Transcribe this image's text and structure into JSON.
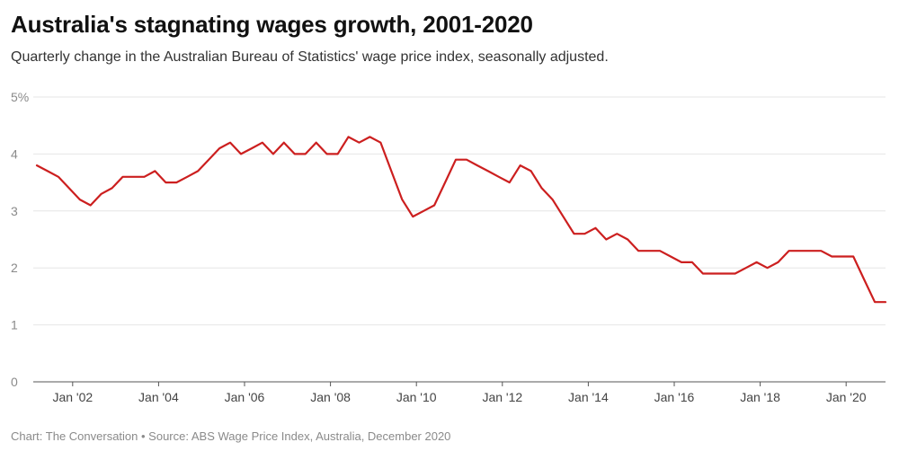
{
  "title": "Australia's stagnating wages growth, 2001-2020",
  "subtitle": "Quarterly change in the Australian Bureau of Statistics' wage price index, seasonally adjusted.",
  "footer": "Chart: The Conversation • Source: ABS Wage Price Index, Australia, December 2020",
  "colors": {
    "line": "#cc1f1f",
    "grid": "#e6e6e6",
    "axis": "#555555"
  },
  "chart_data": {
    "type": "line",
    "title": "Australia's stagnating wages growth, 2001-2020",
    "ylim": [
      0,
      5
    ],
    "y_ticks": [
      {
        "value": 0,
        "label": "0"
      },
      {
        "value": 1,
        "label": "1"
      },
      {
        "value": 2,
        "label": "2"
      },
      {
        "value": 3,
        "label": "3"
      },
      {
        "value": 4,
        "label": "4"
      },
      {
        "value": 5,
        "label": "5%"
      }
    ],
    "x_ticks": [
      {
        "date": "2002-01",
        "label": "Jan '02"
      },
      {
        "date": "2004-01",
        "label": "Jan '04"
      },
      {
        "date": "2006-01",
        "label": "Jan '06"
      },
      {
        "date": "2008-01",
        "label": "Jan '08"
      },
      {
        "date": "2010-01",
        "label": "Jan '10"
      },
      {
        "date": "2012-01",
        "label": "Jan '12"
      },
      {
        "date": "2014-01",
        "label": "Jan '14"
      },
      {
        "date": "2016-01",
        "label": "Jan '16"
      },
      {
        "date": "2018-01",
        "label": "Jan '18"
      },
      {
        "date": "2020-01",
        "label": "Jan '20"
      }
    ],
    "grid": true,
    "series": [
      {
        "x": [
          "2001-03",
          "2001-06",
          "2001-09",
          "2001-12",
          "2002-03",
          "2002-06",
          "2002-09",
          "2002-12",
          "2003-03",
          "2003-06",
          "2003-09",
          "2003-12",
          "2004-03",
          "2004-06",
          "2004-09",
          "2004-12",
          "2005-03",
          "2005-06",
          "2005-09",
          "2005-12",
          "2006-03",
          "2006-06",
          "2006-09",
          "2006-12",
          "2007-03",
          "2007-06",
          "2007-09",
          "2007-12",
          "2008-03",
          "2008-06",
          "2008-09",
          "2008-12",
          "2009-03",
          "2009-06",
          "2009-09",
          "2009-12",
          "2010-03",
          "2010-06",
          "2010-09",
          "2010-12",
          "2011-03",
          "2011-06",
          "2011-09",
          "2011-12",
          "2012-03",
          "2012-06",
          "2012-09",
          "2012-12",
          "2013-03",
          "2013-06",
          "2013-09",
          "2013-12",
          "2014-03",
          "2014-06",
          "2014-09",
          "2014-12",
          "2015-03",
          "2015-06",
          "2015-09",
          "2015-12",
          "2016-03",
          "2016-06",
          "2016-09",
          "2016-12",
          "2017-03",
          "2017-06",
          "2017-09",
          "2017-12",
          "2018-03",
          "2018-06",
          "2018-09",
          "2018-12",
          "2019-03",
          "2019-06",
          "2019-09",
          "2019-12",
          "2020-03",
          "2020-06",
          "2020-09",
          "2020-12"
        ],
        "values": [
          3.8,
          3.7,
          3.6,
          3.4,
          3.2,
          3.1,
          3.3,
          3.4,
          3.6,
          3.6,
          3.6,
          3.7,
          3.5,
          3.5,
          3.6,
          3.7,
          3.9,
          4.1,
          4.2,
          4.0,
          4.1,
          4.2,
          4.0,
          4.2,
          4.0,
          4.0,
          4.2,
          4.0,
          4.0,
          4.3,
          4.2,
          4.3,
          4.2,
          3.7,
          3.2,
          2.9,
          3.0,
          3.1,
          3.5,
          3.9,
          3.9,
          3.8,
          3.7,
          3.6,
          3.5,
          3.8,
          3.7,
          3.4,
          3.2,
          2.9,
          2.6,
          2.6,
          2.7,
          2.5,
          2.6,
          2.5,
          2.3,
          2.3,
          2.3,
          2.2,
          2.1,
          2.1,
          1.9,
          1.9,
          1.9,
          1.9,
          2.0,
          2.1,
          2.0,
          2.1,
          2.3,
          2.3,
          2.3,
          2.3,
          2.2,
          2.2,
          2.2,
          1.8,
          1.4,
          1.4
        ]
      }
    ]
  }
}
